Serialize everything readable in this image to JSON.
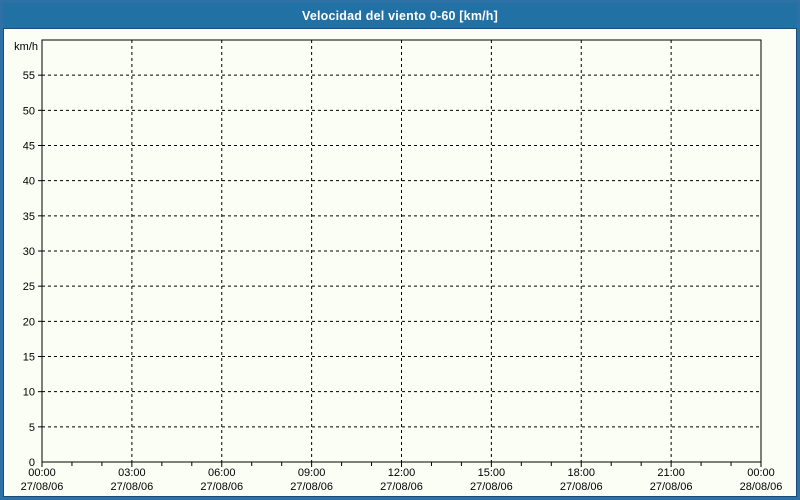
{
  "window": {
    "title": "Velocidad del viento 0-60 [km/h]"
  },
  "chart_data": {
    "type": "line",
    "title": "Velocidad del viento 0-60 [km/h]",
    "xlabel": "",
    "ylabel": "km/h",
    "ylim": [
      0,
      60
    ],
    "y_ticks": [
      0,
      5,
      10,
      15,
      20,
      25,
      30,
      35,
      40,
      45,
      50,
      55
    ],
    "x_axis": {
      "range_hours": [
        0,
        24
      ],
      "major_interval_hours": 3,
      "minor_interval_hours": 1,
      "major_ticks": [
        {
          "time": "00:00",
          "date": "27/08/06"
        },
        {
          "time": "03:00",
          "date": "27/08/06"
        },
        {
          "time": "06:00",
          "date": "27/08/06"
        },
        {
          "time": "09:00",
          "date": "27/08/06"
        },
        {
          "time": "12:00",
          "date": "27/08/06"
        },
        {
          "time": "15:00",
          "date": "27/08/06"
        },
        {
          "time": "18:00",
          "date": "27/08/06"
        },
        {
          "time": "21:00",
          "date": "27/08/06"
        },
        {
          "time": "00:00",
          "date": "28/08/06"
        }
      ]
    },
    "grid": "dashed",
    "legend": null,
    "series": []
  },
  "colors": {
    "titlebar_bg": "#2271a4",
    "titlebar_text": "#ffffff",
    "page_border": "#2d71a6",
    "page_border_inner": "#1d4a72",
    "page_bg": "#fbfef5",
    "axis": "#000000",
    "grid": "#000000",
    "label_text": "#000000"
  }
}
